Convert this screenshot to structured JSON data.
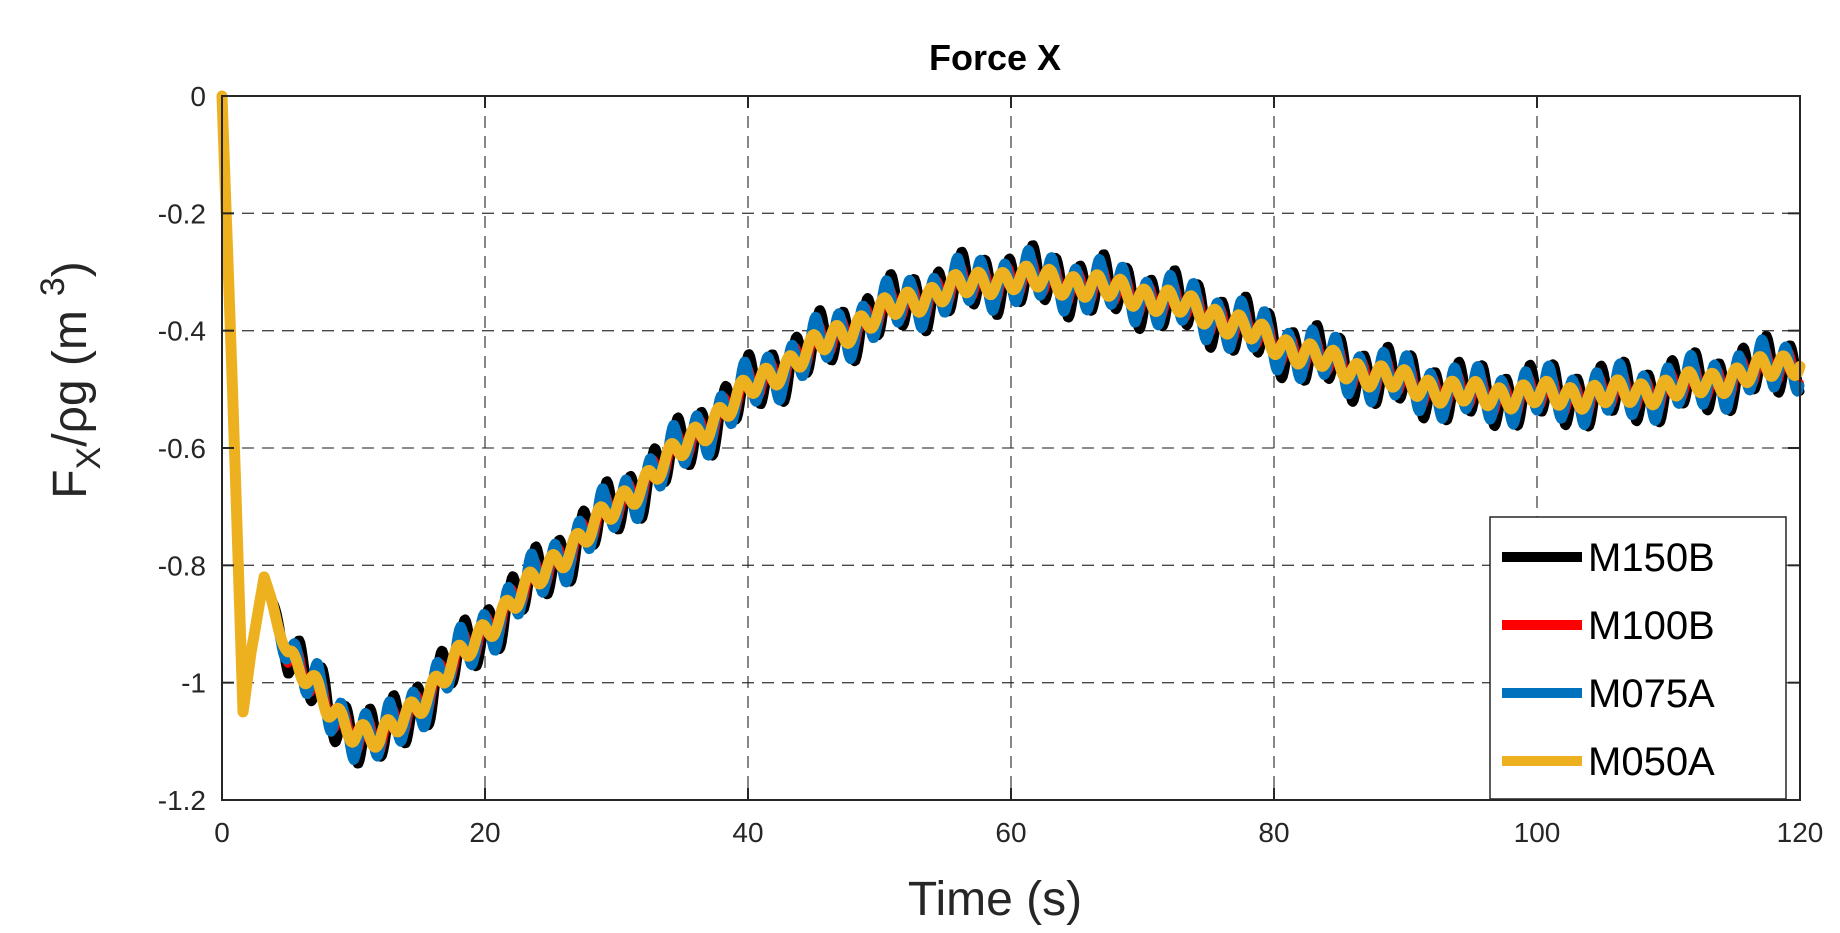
{
  "chart_data": {
    "type": "line",
    "title": "Force X",
    "xlabel": "Time (s)",
    "ylabel": {
      "main": "F",
      "sub": "X",
      "middle": "/ρg (m",
      "sup": "3",
      "close": ")"
    },
    "xlim": [
      0,
      120
    ],
    "ylim": [
      -1.2,
      0
    ],
    "xticks": [
      0,
      20,
      40,
      60,
      80,
      100,
      120
    ],
    "xtick_labels": [
      "0",
      "20",
      "40",
      "60",
      "80",
      "100",
      "120"
    ],
    "yticks": [
      0,
      -0.2,
      -0.4,
      -0.6,
      -0.8,
      -1,
      -1.2
    ],
    "ytick_labels": [
      "0",
      "-0.2",
      "-0.4",
      "-0.6",
      "-0.8",
      "-1",
      "-1.2"
    ],
    "grid": true,
    "legend_position": "bottom-right",
    "series": [
      {
        "name": "M150B",
        "color": "#000000",
        "osc_amplitude": 0.045,
        "x": [
          0,
          0.8,
          1.6,
          2.2,
          3.2,
          5,
          8,
          10,
          12,
          16,
          20,
          25,
          30,
          35,
          40,
          45,
          50,
          55,
          60,
          65,
          70,
          75,
          80,
          85,
          90,
          95,
          100,
          105,
          110,
          115,
          120
        ],
        "values": [
          0,
          -0.5,
          -1.05,
          -0.95,
          -0.82,
          -0.95,
          -1.04,
          -1.08,
          -1.1,
          -1.01,
          -0.91,
          -0.8,
          -0.7,
          -0.6,
          -0.5,
          -0.43,
          -0.37,
          -0.33,
          -0.31,
          -0.32,
          -0.34,
          -0.37,
          -0.42,
          -0.46,
          -0.49,
          -0.51,
          -0.51,
          -0.51,
          -0.5,
          -0.48,
          -0.45
        ]
      },
      {
        "name": "M100B",
        "color": "#ff0000",
        "osc_amplitude": 0.03,
        "x": [
          0,
          0.8,
          1.6,
          2.2,
          3.2,
          5,
          8,
          10,
          12,
          16,
          20,
          25,
          30,
          35,
          40,
          45,
          50,
          55,
          60,
          65,
          70,
          75,
          80,
          85,
          90,
          95,
          100,
          105,
          110,
          115,
          120
        ],
        "values": [
          0,
          -0.5,
          -1.05,
          -0.95,
          -0.82,
          -0.95,
          -1.04,
          -1.08,
          -1.1,
          -1.01,
          -0.91,
          -0.8,
          -0.7,
          -0.6,
          -0.5,
          -0.43,
          -0.37,
          -0.33,
          -0.31,
          -0.32,
          -0.34,
          -0.37,
          -0.42,
          -0.46,
          -0.49,
          -0.51,
          -0.51,
          -0.51,
          -0.5,
          -0.48,
          -0.45
        ]
      },
      {
        "name": "M075A",
        "color": "#0072bd",
        "osc_amplitude": 0.04,
        "x": [
          0,
          0.8,
          1.6,
          2.2,
          3.2,
          5,
          8,
          10,
          12,
          16,
          20,
          25,
          30,
          35,
          40,
          45,
          50,
          55,
          60,
          65,
          70,
          75,
          80,
          85,
          90,
          95,
          100,
          105,
          110,
          115,
          120
        ],
        "values": [
          0,
          -0.5,
          -1.05,
          -0.95,
          -0.82,
          -0.95,
          -1.04,
          -1.08,
          -1.1,
          -1.01,
          -0.91,
          -0.8,
          -0.7,
          -0.6,
          -0.5,
          -0.43,
          -0.37,
          -0.33,
          -0.31,
          -0.32,
          -0.34,
          -0.37,
          -0.42,
          -0.46,
          -0.49,
          -0.51,
          -0.51,
          -0.51,
          -0.5,
          -0.48,
          -0.45
        ]
      },
      {
        "name": "M050A",
        "color": "#edb120",
        "osc_amplitude": 0.018,
        "x": [
          0,
          0.8,
          1.6,
          2.2,
          3.2,
          5,
          8,
          10,
          12,
          16,
          20,
          25,
          30,
          35,
          40,
          45,
          50,
          55,
          60,
          65,
          70,
          75,
          80,
          85,
          90,
          95,
          100,
          105,
          110,
          115,
          120
        ],
        "values": [
          0,
          -0.5,
          -1.05,
          -0.95,
          -0.82,
          -0.95,
          -1.04,
          -1.08,
          -1.1,
          -1.01,
          -0.91,
          -0.8,
          -0.7,
          -0.6,
          -0.5,
          -0.43,
          -0.37,
          -0.33,
          -0.31,
          -0.32,
          -0.34,
          -0.37,
          -0.42,
          -0.46,
          -0.49,
          -0.51,
          -0.51,
          -0.51,
          -0.5,
          -0.48,
          -0.45
        ]
      }
    ]
  }
}
